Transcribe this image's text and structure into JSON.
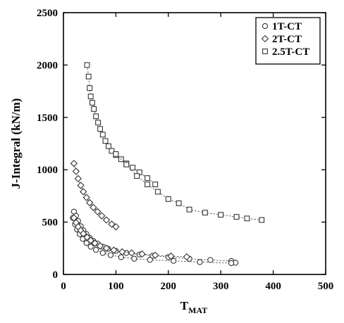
{
  "chart_data": {
    "type": "scatter",
    "xlabel": "T",
    "xlabel_sub": "MAT",
    "ylabel": "J-Integral (kN/m)",
    "xlim": [
      0,
      500
    ],
    "ylim": [
      0,
      2500
    ],
    "xticks": [
      0,
      100,
      200,
      300,
      400,
      500
    ],
    "yticks": [
      0,
      500,
      1000,
      1500,
      2000,
      2500
    ],
    "grid": false,
    "legend_position": "top-right",
    "series": [
      {
        "name": "1T-CT",
        "marker": "circle",
        "curves": [
          [
            [
              20,
              600
            ],
            [
              24,
              560
            ],
            [
              28,
              510
            ],
            [
              33,
              460
            ],
            [
              38,
              420
            ],
            [
              44,
              385
            ],
            [
              50,
              350
            ],
            [
              57,
              320
            ],
            [
              65,
              295
            ],
            [
              75,
              265
            ],
            [
              85,
              245
            ],
            [
              100,
              225
            ],
            [
              120,
              205
            ],
            [
              145,
              190
            ],
            [
              170,
              178
            ],
            [
              200,
              165
            ],
            [
              240,
              150
            ],
            [
              280,
              138
            ],
            [
              320,
              128
            ],
            [
              328,
              112
            ]
          ],
          [
            [
              18,
              540
            ],
            [
              22,
              480
            ],
            [
              26,
              430
            ],
            [
              31,
              385
            ],
            [
              37,
              340
            ],
            [
              44,
              300
            ],
            [
              52,
              265
            ],
            [
              62,
              235
            ],
            [
              75,
              205
            ],
            [
              90,
              185
            ],
            [
              110,
              165
            ],
            [
              135,
              150
            ],
            [
              165,
              140
            ],
            [
              210,
              130
            ],
            [
              260,
              118
            ],
            [
              320,
              108
            ]
          ]
        ]
      },
      {
        "name": "2T-CT",
        "marker": "diamond",
        "curves": [
          [
            [
              20,
              1060
            ],
            [
              24,
              985
            ],
            [
              28,
              915
            ],
            [
              33,
              850
            ],
            [
              38,
              790
            ],
            [
              44,
              735
            ],
            [
              50,
              685
            ],
            [
              57,
              640
            ],
            [
              65,
              600
            ],
            [
              73,
              560
            ],
            [
              82,
              520
            ],
            [
              92,
              480
            ],
            [
              100,
              455
            ]
          ],
          [
            [
              20,
              540
            ],
            [
              24,
              495
            ],
            [
              28,
              455
            ],
            [
              33,
              420
            ],
            [
              38,
              390
            ],
            [
              45,
              355
            ],
            [
              52,
              325
            ],
            [
              60,
              298
            ],
            [
              70,
              272
            ],
            [
              82,
              250
            ],
            [
              96,
              232
            ],
            [
              112,
              216
            ],
            [
              130,
              205
            ],
            [
              150,
              195
            ],
            [
              175,
              183
            ],
            [
              205,
              175
            ],
            [
              235,
              168
            ]
          ]
        ]
      },
      {
        "name": "2.5T-CT",
        "marker": "square",
        "curves": [
          [
            [
              45,
              2000
            ],
            [
              48,
              1890
            ],
            [
              50,
              1780
            ],
            [
              52,
              1700
            ],
            [
              55,
              1640
            ],
            [
              58,
              1580
            ],
            [
              62,
              1510
            ],
            [
              66,
              1450
            ],
            [
              70,
              1390
            ],
            [
              75,
              1335
            ],
            [
              80,
              1275
            ],
            [
              86,
              1225
            ],
            [
              92,
              1180
            ],
            [
              100,
              1140
            ],
            [
              110,
              1100
            ],
            [
              120,
              1060
            ],
            [
              132,
              1020
            ],
            [
              145,
              975
            ],
            [
              160,
              920
            ],
            [
              175,
              860
            ]
          ],
          [
            [
              100,
              1150
            ],
            [
              120,
              1050
            ],
            [
              140,
              940
            ],
            [
              160,
              860
            ],
            [
              180,
              790
            ],
            [
              200,
              720
            ],
            [
              220,
              680
            ],
            [
              240,
              620
            ],
            [
              270,
              590
            ],
            [
              300,
              570
            ],
            [
              330,
              550
            ],
            [
              350,
              535
            ],
            [
              378,
              520
            ]
          ]
        ]
      }
    ]
  }
}
